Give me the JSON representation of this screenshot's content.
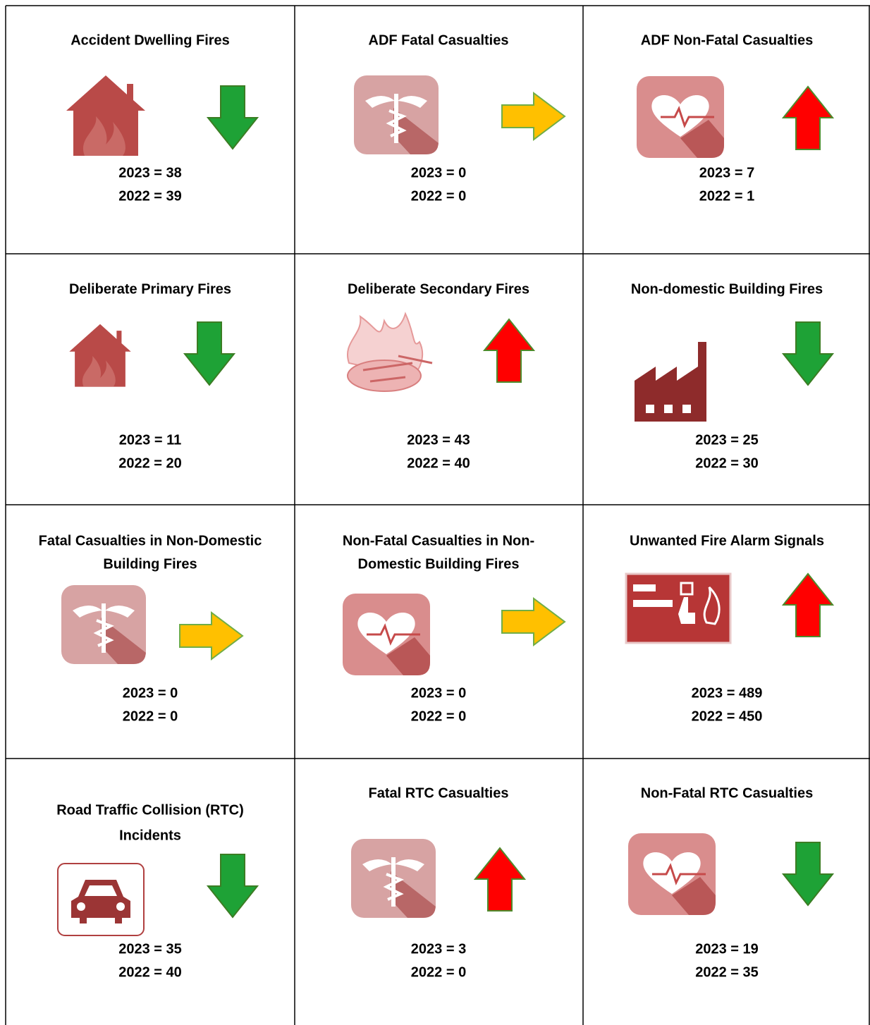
{
  "grid": {
    "rows": [
      [
        {
          "title": [
            "Accident Dwelling Fires"
          ],
          "lines": [
            "2023 = 38",
            "2022 = 39"
          ]
        },
        {
          "title": [
            "ADF Fatal Casualties"
          ],
          "lines": [
            "2023 = 0",
            "2022 = 0"
          ]
        },
        {
          "title": [
            "ADF Non-Fatal Casualties"
          ],
          "lines": [
            "2023 = 7",
            "2022 = 1"
          ]
        }
      ],
      [
        {
          "title": [
            "Deliberate Primary Fires"
          ],
          "lines": [
            "2023 = 11",
            "2022 = 20"
          ]
        },
        {
          "title": [
            "Deliberate Secondary Fires"
          ],
          "lines": [
            "2023 = 43",
            "2022 = 40"
          ]
        },
        {
          "title": [
            "Non-domestic Building Fires"
          ],
          "lines": [
            "2023 = 25",
            "2022 = 30"
          ]
        }
      ],
      [
        {
          "title": [
            "Fatal Casualties in Non-Domestic",
            "Building Fires"
          ],
          "lines": [
            "2023 = 0",
            "2022 = 0"
          ]
        },
        {
          "title": [
            "Non-Fatal Casualties in Non-",
            "Domestic Building Fires"
          ],
          "lines": [
            "2023 = 0",
            "2022 = 0"
          ]
        },
        {
          "title": [
            "Unwanted Fire Alarm Signals"
          ],
          "lines": [
            "2023 = 489",
            "2022 = 450"
          ]
        }
      ],
      [
        {
          "title": [
            "Road Traffic Collision (RTC)",
            "Incidents"
          ],
          "lines": [
            "2023 = 35",
            "2022 = 40"
          ]
        },
        {
          "title": [
            "Fatal RTC Casualties"
          ],
          "lines": [
            "2023 = 3",
            "2022 = 0"
          ]
        },
        {
          "title": [
            "Non-Fatal RTC Casualties"
          ],
          "lines": [
            "2023 = 19",
            "2022 = 35"
          ]
        }
      ]
    ]
  }
}
